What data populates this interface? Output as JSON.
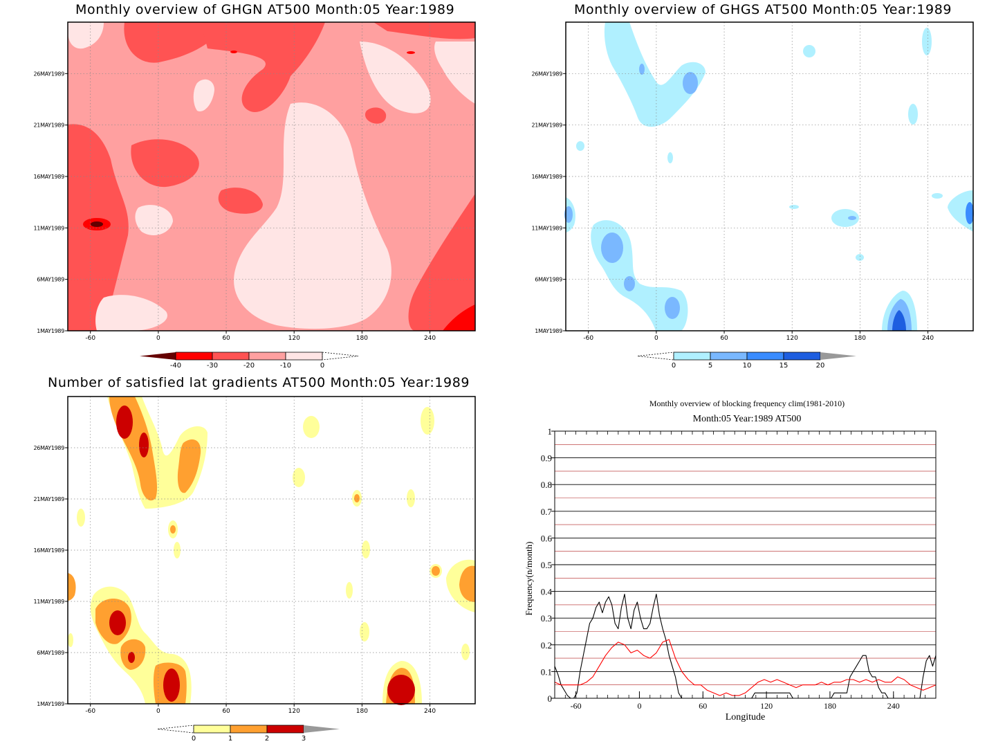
{
  "colors": {
    "ghgn": [
      "#650000",
      "#ff0000",
      "#ff5353",
      "#ffa0a0",
      "#ffe5e5"
    ],
    "ghgs": [
      "#b0f0ff",
      "#7ab8ff",
      "#3a8cff",
      "#1e5ee0"
    ],
    "lat": [
      "#ffff9a",
      "#ffa030",
      "#cc0000"
    ],
    "grid_red": "#b02020",
    "line_red": "#ff0000",
    "line_black": "#000000"
  },
  "chart_data": [
    {
      "type": "heatmap",
      "title": "Monthly overview of GHGN AT500 Month:05 Year:1989",
      "x_ticks": [
        "-60",
        "0",
        "60",
        "120",
        "180",
        "240"
      ],
      "x_range": [
        -80,
        280
      ],
      "y_ticks": [
        "1MAY1989",
        "6MAY1989",
        "11MAY1989",
        "16MAY1989",
        "21MAY1989",
        "26MAY1989"
      ],
      "y_range": [
        1,
        31
      ],
      "colorbar": {
        "labels": [
          "-40",
          "-30",
          "-20",
          "-10",
          "0"
        ],
        "style": "filled-red-arrow-left"
      },
      "grid": true
    },
    {
      "type": "heatmap",
      "title": "Monthly overview of GHGS AT500 Month:05 Year:1989",
      "x_ticks": [
        "-60",
        "0",
        "60",
        "120",
        "180",
        "240"
      ],
      "x_range": [
        -80,
        280
      ],
      "y_ticks": [
        "1MAY1989",
        "6MAY1989",
        "11MAY1989",
        "16MAY1989",
        "21MAY1989",
        "26MAY1989"
      ],
      "y_range": [
        1,
        31
      ],
      "colorbar": {
        "labels": [
          "0",
          "5",
          "10",
          "15",
          "20"
        ],
        "style": "filled-blue-arrow-right"
      },
      "grid": true
    },
    {
      "type": "heatmap",
      "title": "Number of satisfied lat gradients AT500 Month:05 Year:1989",
      "x_ticks": [
        "-60",
        "0",
        "60",
        "120",
        "180",
        "240"
      ],
      "x_range": [
        -80,
        280
      ],
      "y_ticks": [
        "1MAY1989",
        "6MAY1989",
        "11MAY1989",
        "16MAY1989",
        "21MAY1989",
        "26MAY1989"
      ],
      "y_range": [
        1,
        31
      ],
      "colorbar": {
        "labels": [
          "0",
          "1",
          "2",
          "3"
        ],
        "style": "filled-yellow-red"
      },
      "grid": true
    },
    {
      "type": "line",
      "title": "Monthly overview of blocking frequency clim(1981-2010)",
      "subtitle": "Month:05 Year:1989  AT500",
      "xlabel": "Longitude",
      "ylabel": "Frequency(n/month)",
      "xlim": [
        -80,
        280
      ],
      "ylim": [
        0,
        1
      ],
      "x_ticks": [
        "-60",
        "0",
        "60",
        "120",
        "180",
        "240"
      ],
      "y_ticks": [
        "0",
        "0.1",
        "0.2",
        "0.3",
        "0.4",
        "0.5",
        "0.6",
        "0.7",
        "0.8",
        "0.9",
        "1"
      ],
      "grid": true,
      "series": [
        {
          "color": "#000000",
          "x": [
            -80,
            -77,
            -74,
            -71,
            -68,
            -65,
            -62,
            -59,
            -56,
            -53,
            -50,
            -47,
            -44,
            -41,
            -38,
            -35,
            -32,
            -29,
            -26,
            -23,
            -20,
            -17,
            -14,
            -11,
            -8,
            -5,
            -2,
            1,
            4,
            7,
            10,
            13,
            16,
            19,
            22,
            25,
            28,
            31,
            34,
            37,
            40,
            43,
            46,
            49,
            52,
            55,
            58,
            61,
            64,
            67,
            70,
            73,
            76,
            79,
            82,
            85,
            88,
            91,
            94,
            97,
            100,
            103,
            106,
            109,
            112,
            115,
            118,
            121,
            124,
            127,
            130,
            133,
            136,
            139,
            142,
            145,
            148,
            151,
            154,
            157,
            160,
            163,
            166,
            169,
            172,
            175,
            178,
            181,
            184,
            187,
            190,
            193,
            196,
            199,
            202,
            205,
            208,
            211,
            214,
            217,
            220,
            223,
            226,
            229,
            232,
            235,
            238,
            241,
            244,
            247,
            250,
            253,
            256,
            259,
            262,
            265,
            268,
            271,
            274,
            277,
            280
          ],
          "y": [
            0.12,
            0.09,
            0.05,
            0.03,
            0.01,
            0,
            0,
            0.02,
            0.1,
            0.16,
            0.22,
            0.28,
            0.3,
            0.34,
            0.36,
            0.32,
            0.36,
            0.38,
            0.35,
            0.28,
            0.26,
            0.34,
            0.39,
            0.3,
            0.26,
            0.33,
            0.36,
            0.3,
            0.26,
            0.26,
            0.28,
            0.34,
            0.39,
            0.31,
            0.26,
            0.22,
            0.16,
            0.12,
            0.08,
            0.02,
            0,
            0,
            0,
            0,
            0,
            0,
            0,
            0,
            0,
            0,
            0,
            0,
            0,
            0,
            0,
            0,
            0,
            0,
            0,
            0,
            0,
            0,
            0,
            0.02,
            0.02,
            0.02,
            0.02,
            0.02,
            0.02,
            0.02,
            0.02,
            0.02,
            0.02,
            0.02,
            0.02,
            0,
            0,
            0,
            0,
            0,
            0,
            0,
            0,
            0,
            0,
            0,
            0,
            0,
            0.02,
            0.02,
            0.02,
            0.02,
            0.02,
            0.08,
            0.1,
            0.12,
            0.14,
            0.16,
            0.16,
            0.1,
            0.08,
            0.08,
            0.04,
            0.02,
            0.02,
            0,
            0,
            0,
            0,
            0,
            0,
            0,
            0,
            0,
            0,
            0,
            0.08,
            0.14,
            0.16,
            0.12,
            0.16
          ]
        },
        {
          "color": "#ff0000",
          "x": [
            -80,
            -74,
            -68,
            -62,
            -56,
            -50,
            -44,
            -38,
            -32,
            -26,
            -20,
            -14,
            -8,
            -2,
            4,
            10,
            16,
            22,
            28,
            34,
            40,
            46,
            52,
            58,
            64,
            70,
            76,
            82,
            88,
            94,
            100,
            106,
            112,
            118,
            124,
            130,
            136,
            142,
            148,
            154,
            160,
            166,
            172,
            178,
            184,
            190,
            196,
            202,
            208,
            214,
            220,
            226,
            232,
            238,
            244,
            250,
            256,
            262,
            268,
            274,
            280
          ],
          "y": [
            0.06,
            0.05,
            0.05,
            0.05,
            0.05,
            0.06,
            0.08,
            0.12,
            0.16,
            0.19,
            0.21,
            0.2,
            0.17,
            0.18,
            0.16,
            0.15,
            0.17,
            0.21,
            0.22,
            0.15,
            0.1,
            0.07,
            0.05,
            0.05,
            0.03,
            0.02,
            0.01,
            0.02,
            0.01,
            0.01,
            0.02,
            0.04,
            0.06,
            0.07,
            0.06,
            0.07,
            0.06,
            0.05,
            0.04,
            0.05,
            0.05,
            0.05,
            0.06,
            0.05,
            0.06,
            0.06,
            0.07,
            0.07,
            0.06,
            0.07,
            0.06,
            0.07,
            0.06,
            0.06,
            0.08,
            0.07,
            0.05,
            0.04,
            0.03,
            0.04,
            0.05
          ]
        }
      ]
    }
  ]
}
